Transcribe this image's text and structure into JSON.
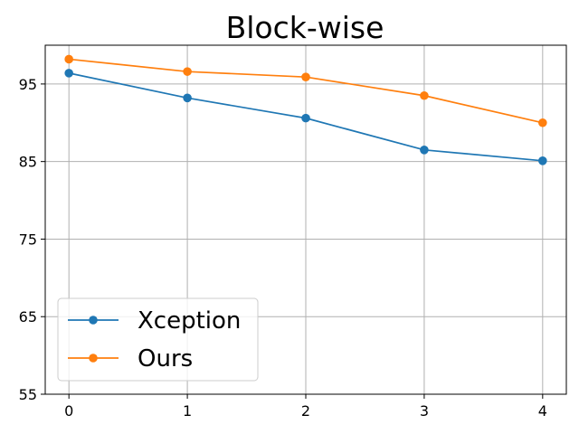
{
  "chart_data": {
    "type": "line",
    "title": "Block-wise",
    "xlabel": "",
    "ylabel": "",
    "x": [
      0,
      1,
      2,
      3,
      4
    ],
    "xticks": [
      "0",
      "1",
      "2",
      "3",
      "4"
    ],
    "yticks": [
      "55",
      "65",
      "75",
      "85",
      "95"
    ],
    "ytick_values": [
      55,
      65,
      75,
      85,
      95
    ],
    "xlim": [
      -0.2,
      4.2
    ],
    "ylim": [
      55,
      100
    ],
    "grid": true,
    "legend_position": "lower-left",
    "series": [
      {
        "name": "Xception",
        "color": "#1f77b4",
        "values": [
          96.4,
          93.2,
          90.6,
          86.5,
          85.1
        ]
      },
      {
        "name": "Ours",
        "color": "#ff7f0e",
        "values": [
          98.2,
          96.6,
          95.9,
          93.5,
          90.0
        ]
      }
    ]
  }
}
